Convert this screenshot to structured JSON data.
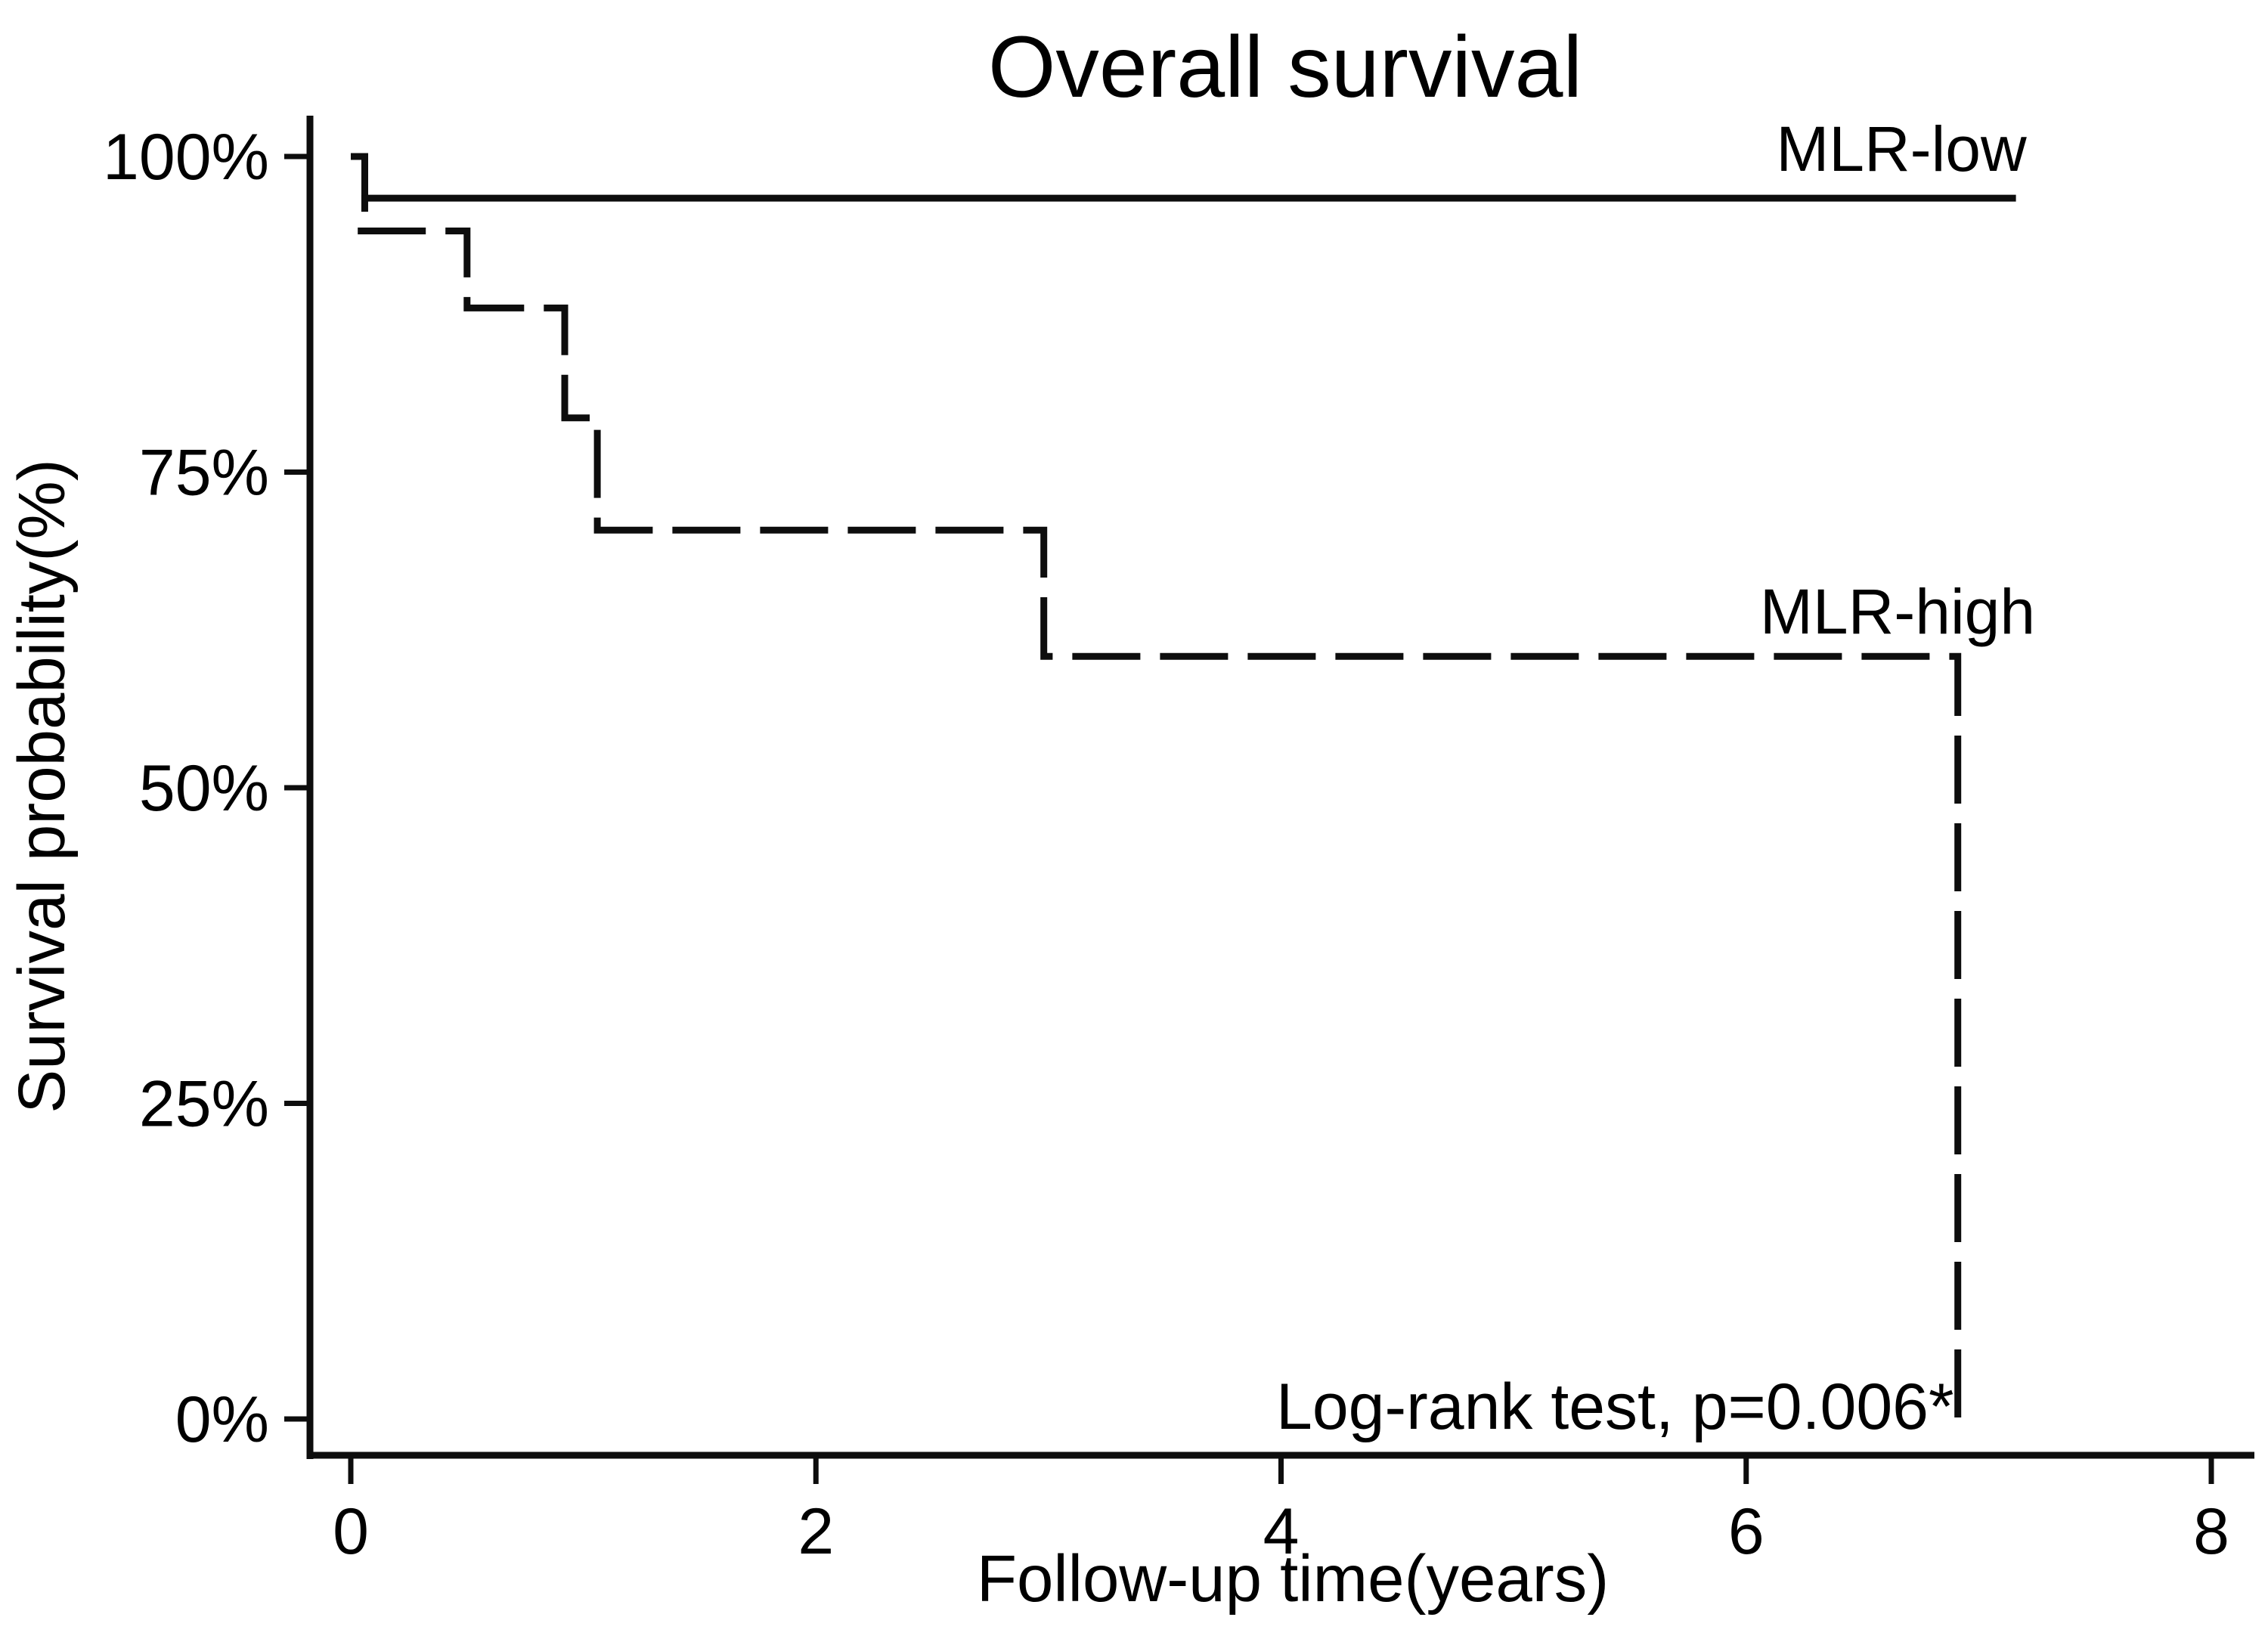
{
  "chart_data": {
    "type": "line",
    "variant": "kaplan-meier-step-plot",
    "title": "Overall survival",
    "xlabel": "Follow-up time(years)",
    "ylabel": "Survival probability(%)",
    "annotation": "Log-rank test, p=0.006*",
    "grid": false,
    "legend_position": "labels-next-to-curves",
    "line_color": "#000000",
    "background_color": "#ffffff",
    "x_axis": {
      "range": [
        0,
        8
      ],
      "tick_values": [
        0,
        2,
        4,
        6,
        8
      ],
      "tick_labels": [
        "0",
        "2",
        "4",
        "6",
        "8"
      ]
    },
    "y_axis": {
      "range": [
        0,
        100
      ],
      "tick_values": [
        0,
        25,
        50,
        75,
        100
      ],
      "tick_labels": [
        "0%",
        "25%",
        "50%",
        "75%",
        "100%"
      ]
    },
    "series": [
      {
        "name": "MLR-low",
        "line_style": "solid",
        "points": [
          [
            0,
            100
          ],
          [
            0.06,
            100
          ],
          [
            0.06,
            96.7
          ],
          [
            7.16,
            96.7
          ]
        ],
        "censor_tick_at_first_drop": true
      },
      {
        "name": "MLR-high",
        "line_style": "dashed",
        "points": [
          [
            0.03,
            94.1
          ],
          [
            0.5,
            94.1
          ],
          [
            0.5,
            88
          ],
          [
            0.92,
            88
          ],
          [
            0.92,
            79.3
          ],
          [
            1.06,
            79.3
          ],
          [
            1.06,
            70.4
          ],
          [
            2.98,
            70.4
          ],
          [
            2.98,
            60.4
          ],
          [
            6.91,
            60.4
          ],
          [
            6.91,
            0
          ]
        ]
      }
    ]
  }
}
